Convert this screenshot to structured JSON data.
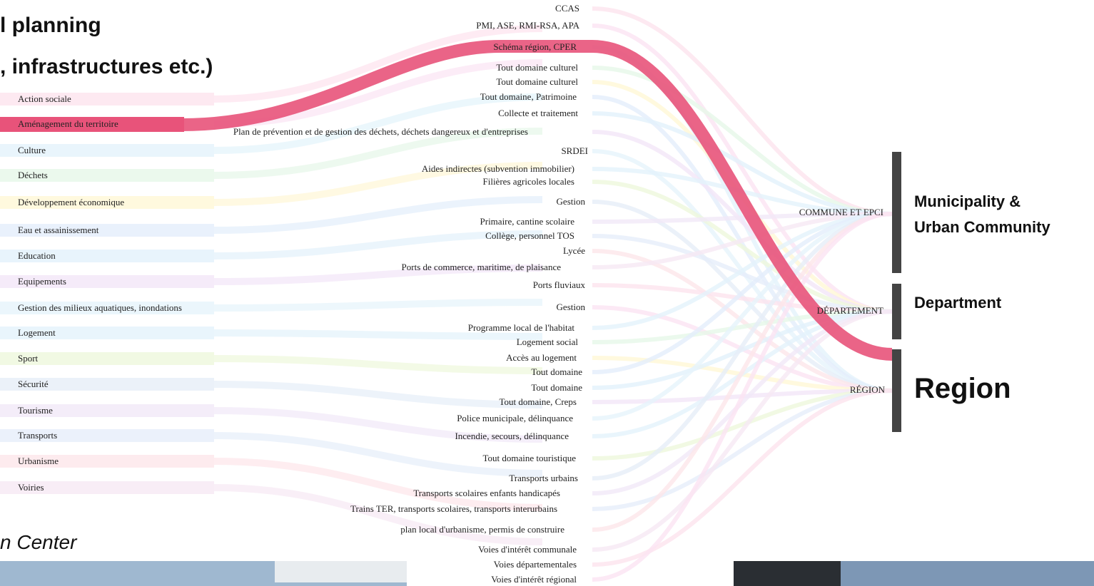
{
  "header": {
    "title_lines": [
      "l planning",
      ", infrastructures etc.)"
    ],
    "caption": "n Center"
  },
  "competences": [
    "Action sociale",
    "Aménagement du territoire",
    "Culture",
    "Déchets",
    "Développement économique",
    "Eau et assainissement",
    "Education",
    "Equipements",
    "Gestion des milieux aquatiques, inondations",
    "Logement",
    "Sport",
    "Sécurité",
    "Tourisme",
    "Transports",
    "Urbanisme",
    "Voiries"
  ],
  "details": [
    "CCAS",
    "PMI, ASE, RMI-RSA, APA",
    "Schéma région, CPER",
    "Tout domaine culturel",
    "Tout domaine culturel",
    "Tout domaine, Patrimoine",
    "Collecte et traitement",
    "Plan de prévention et de gestion des déchets, déchets dangereux et d'entreprises",
    "SRDEI",
    "Aides indirectes (subvention immobilier)",
    "Filières agricoles locales",
    "Gestion",
    "Primaire, cantine scolaire",
    "Collège, personnel TOS",
    "Lycée",
    "Ports de commerce, maritime, de plaisance",
    "Ports fluviaux",
    "Gestion",
    "Programme local de l'habitat",
    "Logement social",
    "Accès au logement",
    "Tout domaine",
    "Tout domaine",
    "Tout domaine, Creps",
    "Police municipale, délinquance",
    "Incendie, secours, délinquance",
    "Tout domaine touristique",
    "Transports urbains",
    "Transports scolaires enfants handicapés",
    "Trains TER, transports scolaires, transports interurbains",
    "plan local d'urbanisme, permis de construire",
    "Voies d'intérêt communale",
    "Voies départementales",
    "Voies d'intérêt régional"
  ],
  "levels": [
    "COMMUNE ET EPCI",
    "DÉPARTEMENT",
    "RÉGION"
  ],
  "level_names": [
    [
      "Municipality &",
      "Urban Community"
    ],
    [
      "Department"
    ],
    [
      "Region"
    ]
  ]
}
